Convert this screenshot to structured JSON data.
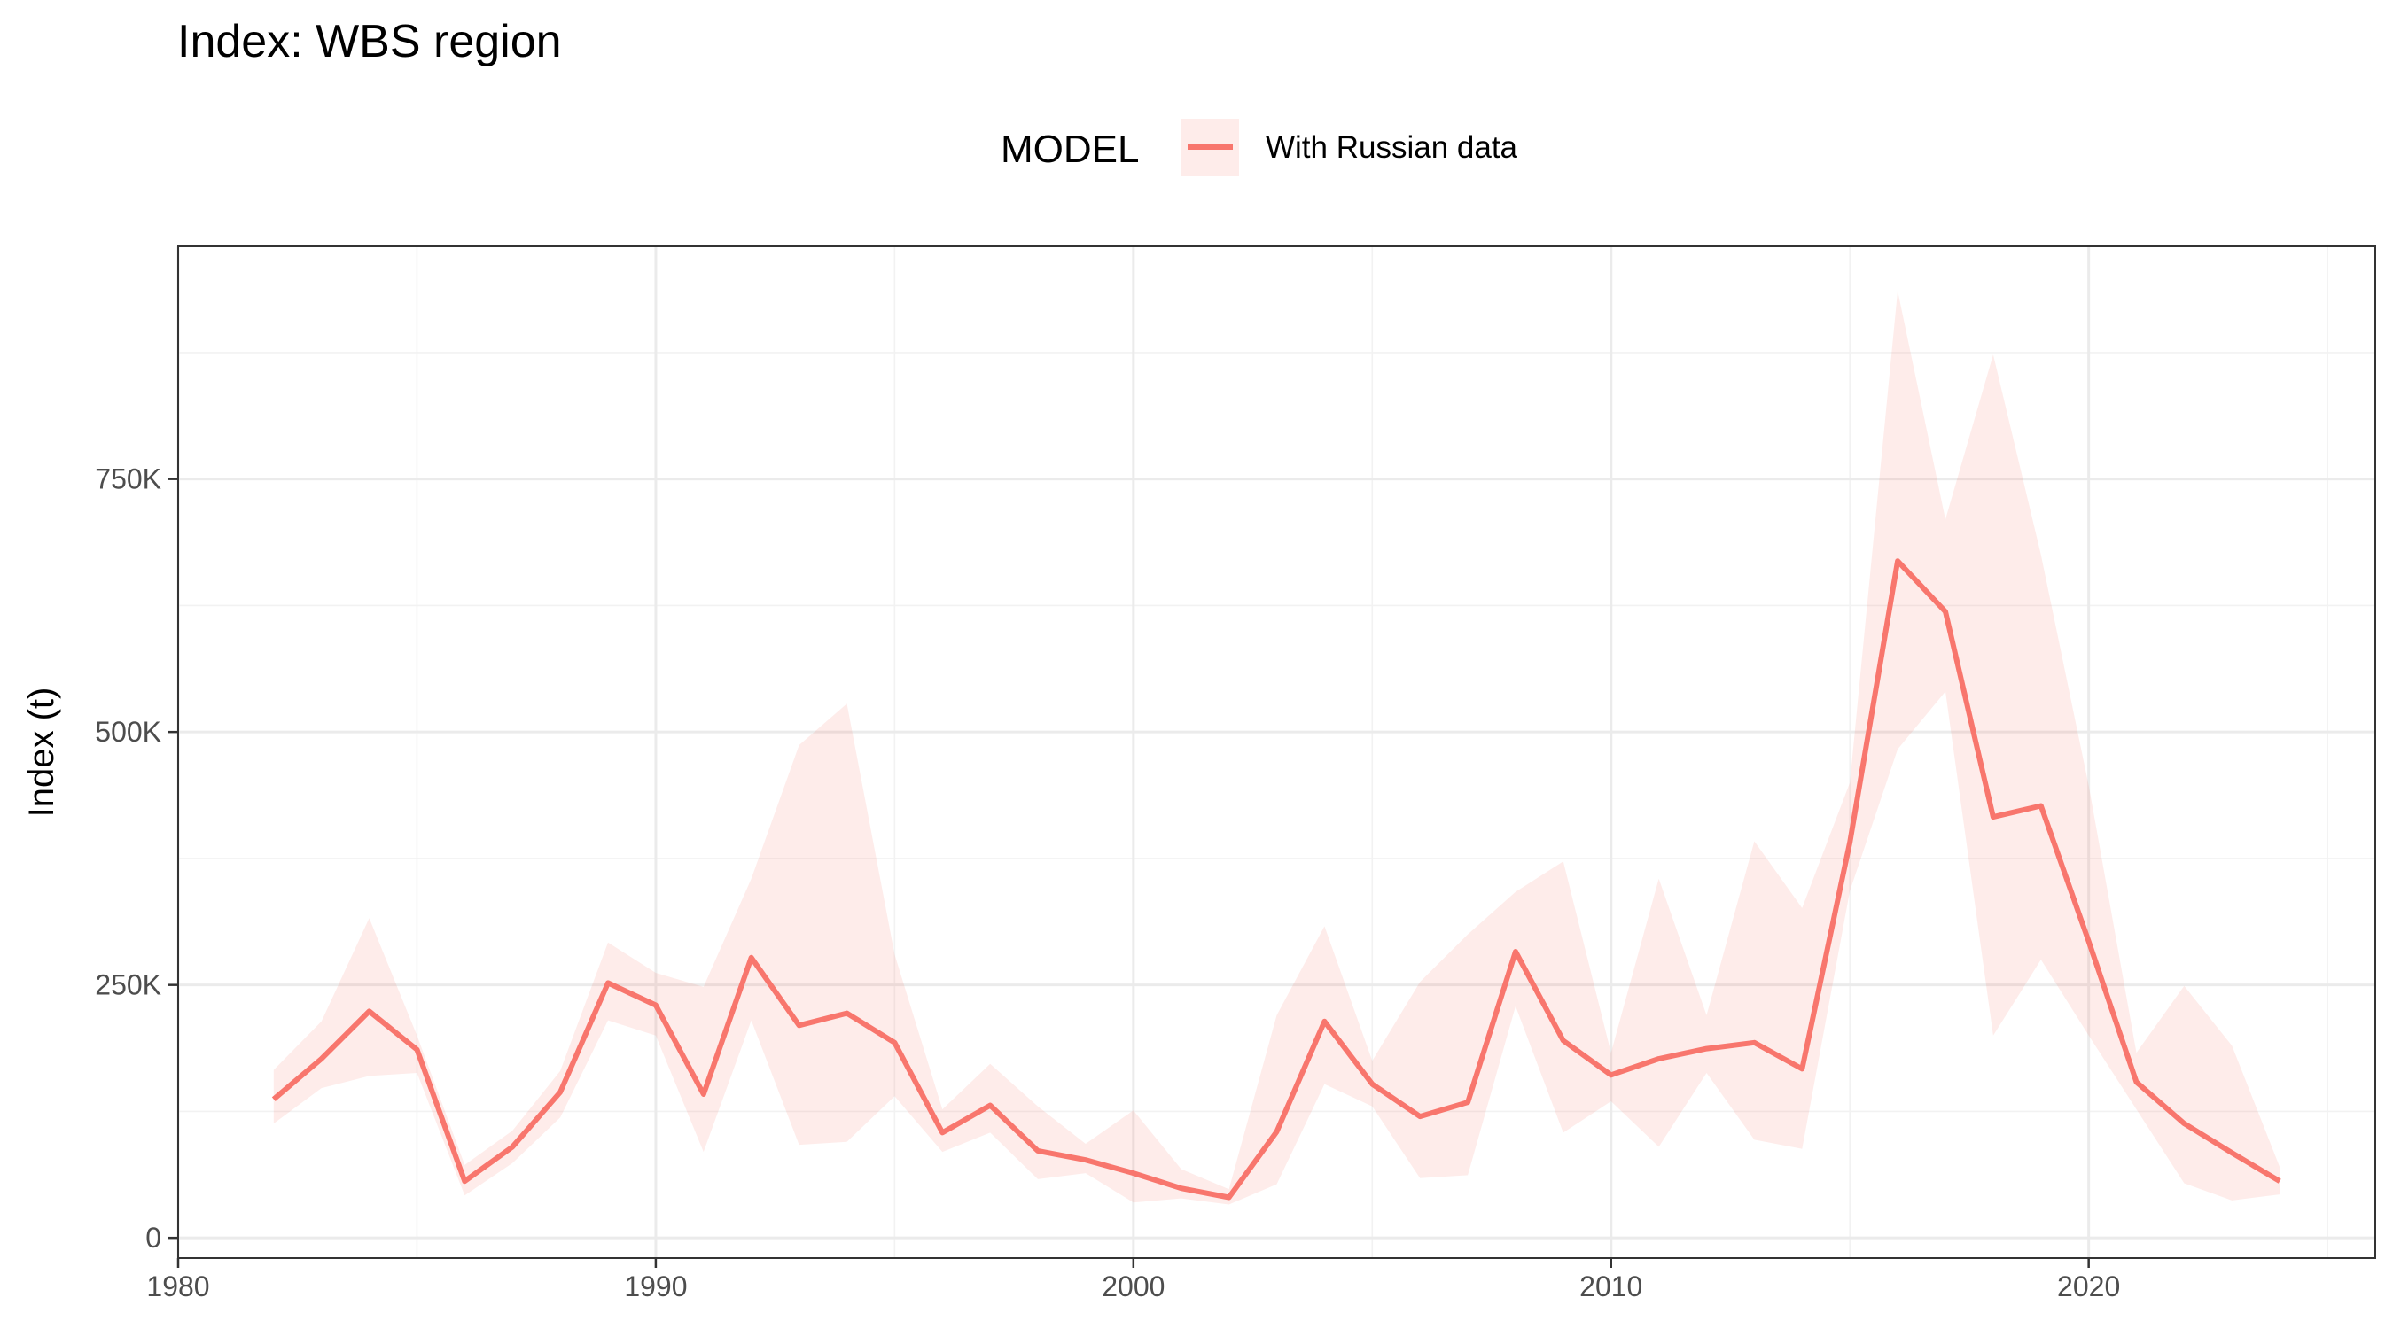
{
  "title": "Index: WBS region",
  "legend": {
    "title": "MODEL",
    "entries": [
      {
        "label": "With Russian data",
        "color": "#F8766D",
        "fill_color": "#F8766D",
        "fill_opacity": 0.14
      }
    ],
    "position": "top"
  },
  "chart_data": {
    "type": "line",
    "title": "Index: WBS region",
    "xlabel": "",
    "ylabel": "Index (t)",
    "xlim": [
      1980,
      2026
    ],
    "ylim": [
      -20000,
      980000
    ],
    "x_ticks": [
      1980,
      1990,
      2000,
      2010,
      2020
    ],
    "x_tick_labels": [
      "1980",
      "1990",
      "2000",
      "2010",
      "2020"
    ],
    "y_ticks": [
      0,
      250000,
      500000,
      750000
    ],
    "y_tick_labels": [
      "0",
      "250K",
      "500K",
      "750K"
    ],
    "x_minor_ticks": [
      1985,
      1995,
      2005,
      2015,
      2025
    ],
    "y_minor_ticks": [
      125000,
      375000,
      625000,
      875000
    ],
    "grid": true,
    "series": [
      {
        "name": "With Russian data",
        "color": "#F8766D",
        "x": [
          1982,
          1983,
          1984,
          1985,
          1986,
          1987,
          1988,
          1989,
          1990,
          1991,
          1992,
          1993,
          1994,
          1995,
          1996,
          1997,
          1998,
          1999,
          2000,
          2001,
          2002,
          2003,
          2004,
          2005,
          2006,
          2007,
          2008,
          2009,
          2010,
          2011,
          2012,
          2013,
          2014,
          2015,
          2016,
          2017,
          2018,
          2019,
          2020,
          2021,
          2022,
          2023,
          2024
        ],
        "y": [
          137000,
          177000,
          224000,
          186000,
          56000,
          90000,
          144000,
          252000,
          230000,
          142000,
          277000,
          210000,
          222000,
          193000,
          104000,
          131000,
          86000,
          77000,
          64000,
          49000,
          40000,
          105000,
          214000,
          152000,
          120000,
          134000,
          283000,
          195000,
          161000,
          177000,
          187000,
          193000,
          167000,
          391000,
          669000,
          619000,
          416000,
          427000,
          293000,
          154000,
          113000,
          84000,
          56000
        ],
        "lower": [
          113000,
          148000,
          160000,
          163000,
          42000,
          74000,
          119000,
          215000,
          200000,
          85000,
          215000,
          92000,
          95000,
          140000,
          85000,
          104000,
          58000,
          64000,
          35000,
          39000,
          33000,
          53000,
          152000,
          130000,
          59000,
          62000,
          229000,
          104000,
          135000,
          90000,
          163000,
          97000,
          88000,
          343000,
          483000,
          540000,
          200000,
          275000,
          200000,
          127000,
          54000,
          37000,
          43000
        ]
      }
    ],
    "ribbon_upper": [
      166000,
      214000,
      316000,
      200000,
      72000,
      106000,
      165000,
      292000,
      262000,
      248000,
      355000,
      487000,
      528000,
      280000,
      127000,
      172000,
      130000,
      93000,
      126000,
      68000,
      48000,
      220000,
      308000,
      175000,
      253000,
      300000,
      342000,
      372000,
      183000,
      355000,
      220000,
      392000,
      326000,
      450000,
      936000,
      710000,
      873000,
      675000,
      447000,
      183000,
      249000,
      190000,
      70000
    ]
  }
}
